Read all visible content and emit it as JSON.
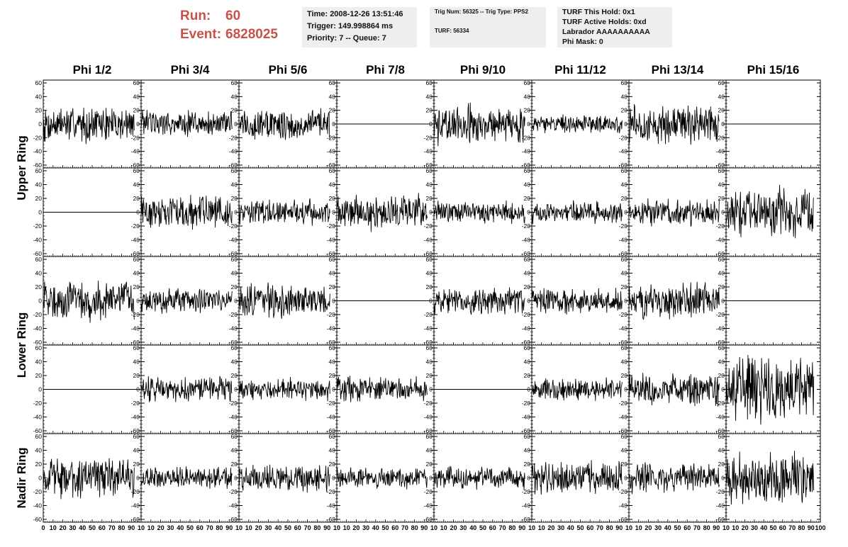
{
  "header": {
    "run_label": "Run:",
    "run_value": "60",
    "event_label": "Event:",
    "event_value": "6828025"
  },
  "info_time": {
    "time": "Time: 2008-12-26 13:51:46",
    "trigger": "Trigger: 149.998864 ms",
    "priority": "Priority: 7 -- Queue: 7"
  },
  "info_trig": {
    "trig": "Trig Num: 56325 -- Trig Type: PPS2",
    "turf": "TURF: 56334"
  },
  "info_turf": {
    "this_hold": "TURF This Hold: 0x1",
    "active_holds": "TURF Active Holds: 0xd",
    "labrador": "Labrador AAAAAAAAAA",
    "phi_mask": "Phi Mask: 0"
  },
  "colors": {
    "header_accent": "#c8524a",
    "info_bg": "#eeeeee",
    "trace": "#000000"
  },
  "chart_data": {
    "type": "line",
    "columns": [
      "Phi 1/2",
      "Phi 3/4",
      "Phi 5/6",
      "Phi 7/8",
      "Phi 9/10",
      "Phi 11/12",
      "Phi 13/14",
      "Phi 15/16"
    ],
    "row_groups": [
      "Upper Ring",
      "Lower Ring",
      "Nadir Ring"
    ],
    "rows": 5,
    "ylim": [
      -60,
      60
    ],
    "y_ticks": [
      "60",
      "40",
      "20",
      "0",
      "-20",
      "-40",
      "-60"
    ],
    "xlim": [
      0,
      100
    ],
    "x_ticks_mid": [
      "0",
      "10",
      "20",
      "30",
      "40",
      "50",
      "60",
      "70",
      "80",
      "90",
      "10"
    ],
    "x_ticks_last": [
      "0",
      "10",
      "20",
      "30",
      "40",
      "50",
      "60",
      "70",
      "80",
      "90",
      "100"
    ],
    "flat_channels": [
      [
        0,
        3
      ],
      [
        0,
        7
      ],
      [
        1,
        0
      ],
      [
        2,
        3
      ],
      [
        2,
        7
      ],
      [
        3,
        0
      ],
      [
        3,
        4
      ]
    ],
    "amplitude": [
      [
        20,
        15,
        18,
        0,
        22,
        10,
        22,
        0
      ],
      [
        0,
        18,
        14,
        20,
        12,
        12,
        15,
        28
      ],
      [
        22,
        14,
        18,
        0,
        15,
        15,
        20,
        0
      ],
      [
        0,
        14,
        12,
        14,
        0,
        12,
        18,
        35
      ],
      [
        22,
        12,
        15,
        12,
        12,
        18,
        16,
        30
      ]
    ]
  }
}
